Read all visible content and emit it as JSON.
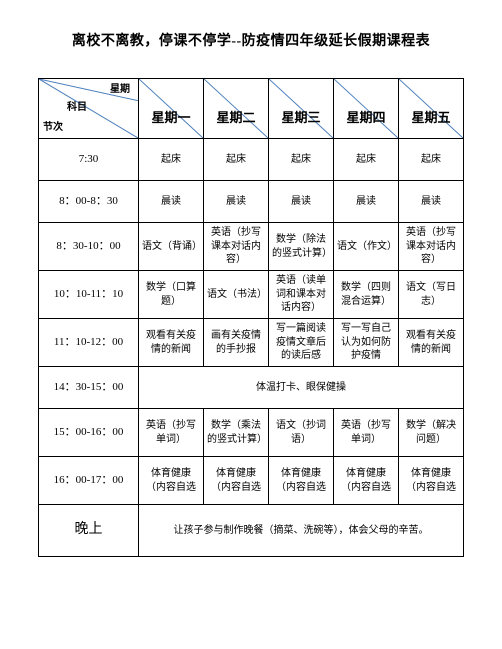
{
  "title": "离校不离教，停课不停学--防疫情四年级延长假期课程表",
  "title_fontsize": 14,
  "corner": {
    "top": "星期",
    "mid": "科目",
    "bot": "节次"
  },
  "days": [
    "星期一",
    "星期二",
    "星期三",
    "星期四",
    "星期五"
  ],
  "header_fontsize": 13,
  "cell_fontsize": 10,
  "time_fontsize": 11,
  "line_color": "#4a7ebb",
  "border_color": "#000000",
  "background_color": "#ffffff",
  "rows": [
    {
      "time": "7:30",
      "cells": [
        "起床",
        "起床",
        "起床",
        "起床",
        "起床"
      ]
    },
    {
      "time": "8：00-8：30",
      "cells": [
        "晨读",
        "晨读",
        "晨读",
        "晨读",
        "晨读"
      ]
    },
    {
      "time": "8：30-10：00",
      "cells": [
        "语文（背诵）",
        "英语（抄写课本对话内容）",
        "数学（除法的竖式计算）",
        "语文（作文）",
        "英语（抄写课本对话内容）"
      ]
    },
    {
      "time": "10：10-11：10",
      "cells": [
        "数学（口算题）",
        "语文（书法）",
        "英语（读单词和课本对话内容）",
        "数学（四则混合运算）",
        "语文（写日志）"
      ]
    },
    {
      "time": "11：10-12：00",
      "cells": [
        "观看有关疫情的新闻",
        "画有关疫情的手抄报",
        "写一篇阅读疫情文章后的读后感",
        "写一写自己认为如何防护疫情",
        "观看有关疫情的新闻"
      ]
    },
    {
      "time": "14：30-15：00",
      "span": "体温打卡、眼保健操"
    },
    {
      "time": "15：00-16：00",
      "cells": [
        "英语（抄写单词）",
        "数学（乘法的竖式计算）",
        "语文（抄词语）",
        "英语（抄写单词）",
        "数学（解决问题）"
      ]
    },
    {
      "time": "16：00-17：00",
      "cells": [
        "体育健康（内容自选",
        "体育健康（内容自选",
        "体育健康（内容自选",
        "体育健康（内容自选",
        "体育健康（内容自选"
      ]
    },
    {
      "time": "晚上",
      "span": "让孩子参与制作晚餐（摘菜、洗碗等），体会父母的辛苦。"
    }
  ]
}
